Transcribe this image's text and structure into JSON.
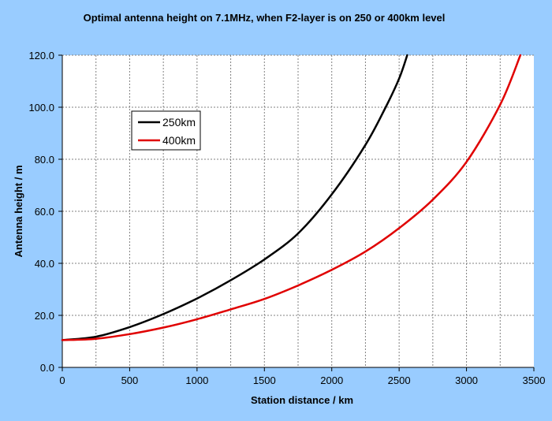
{
  "chart_data": {
    "type": "line",
    "title": "Optimal antenna height on 7.1MHz, when F2-layer is on 250 or 400km level",
    "xlabel": "Station distance  / km",
    "ylabel": "Antenna  height  / m",
    "xlim": [
      0,
      3500
    ],
    "ylim": [
      0,
      120
    ],
    "x_ticks": [
      0,
      500,
      1000,
      1500,
      2000,
      2500,
      3000,
      3500
    ],
    "x_tick_labels": [
      "0",
      "500",
      "1000",
      "1500",
      "2000",
      "2500",
      "3000",
      "3500"
    ],
    "y_ticks": [
      0,
      20,
      40,
      60,
      80,
      100,
      120
    ],
    "y_tick_labels": [
      "0.0",
      "20.0",
      "40.0",
      "60.0",
      "80.0",
      "100.0",
      "120.0"
    ],
    "x_minor_step": 250,
    "grid": true,
    "legend_position": "upper-left",
    "colors": {
      "background": "#99ccff",
      "plot_area": "#ffffff",
      "grid": "#808080"
    },
    "series": [
      {
        "name": "250km",
        "color": "#000000",
        "x": [
          0,
          250,
          500,
          750,
          1000,
          1250,
          1500,
          1750,
          2000,
          2250,
          2400,
          2500,
          2560
        ],
        "y": [
          10.5,
          11.8,
          15.5,
          20.5,
          26.5,
          33.5,
          41.5,
          51.5,
          66.5,
          85.5,
          100,
          111,
          120
        ]
      },
      {
        "name": "400km",
        "color": "#e00000",
        "x": [
          0,
          250,
          500,
          750,
          1000,
          1250,
          1500,
          1750,
          2000,
          2250,
          2500,
          2750,
          3000,
          3250,
          3400
        ],
        "y": [
          10.5,
          11.0,
          12.8,
          15.3,
          18.5,
          22.3,
          26.3,
          31.5,
          37.5,
          44.5,
          53.5,
          64.5,
          79,
          101,
          120
        ]
      }
    ]
  }
}
